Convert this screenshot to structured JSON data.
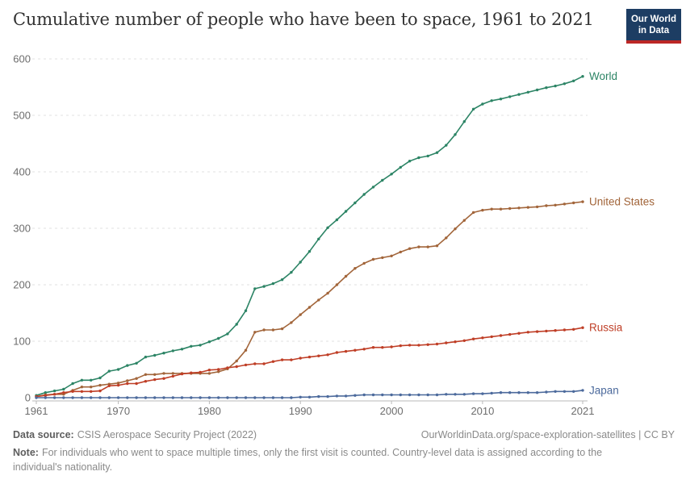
{
  "header": {
    "title": "Cumulative number of people who have been to space, 1961 to 2021",
    "logo_line1": "Our World",
    "logo_line2": "in Data"
  },
  "footer": {
    "source_label": "Data source:",
    "source_value": "CSIS Aerospace Security Project (2022)",
    "link": "OurWorldinData.org/space-exploration-satellites | CC BY",
    "note_label": "Note:",
    "note_value": "For individuals who went to space multiple times, only the first visit is counted. Country-level data is assigned according to the individual's nationality."
  },
  "colors": {
    "logo_navy": "#1d3d63",
    "logo_red": "#bc2726",
    "grid": "#e2e2e2",
    "axis_line": "#b9b9b9",
    "axis_text": "#6d6d6d"
  },
  "chart_data": {
    "type": "line",
    "title": "Cumulative number of people who have been to space, 1961 to 2021",
    "xlabel": "",
    "ylabel": "",
    "ylim": [
      0,
      600
    ],
    "yticks": [
      0,
      100,
      200,
      300,
      400,
      500,
      600
    ],
    "xticks": [
      1961,
      1970,
      1980,
      1990,
      2000,
      2010,
      2021
    ],
    "grid": "horizontal-dashed",
    "legend_position": "right-end-labels",
    "markers": true,
    "x": [
      1961,
      1962,
      1963,
      1964,
      1965,
      1966,
      1967,
      1968,
      1969,
      1970,
      1971,
      1972,
      1973,
      1974,
      1975,
      1976,
      1977,
      1978,
      1979,
      1980,
      1981,
      1982,
      1983,
      1984,
      1985,
      1986,
      1987,
      1988,
      1989,
      1990,
      1991,
      1992,
      1993,
      1994,
      1995,
      1996,
      1997,
      1998,
      1999,
      2000,
      2001,
      2002,
      2003,
      2004,
      2005,
      2006,
      2007,
      2008,
      2009,
      2010,
      2011,
      2012,
      2013,
      2014,
      2015,
      2016,
      2017,
      2018,
      2019,
      2020,
      2021
    ],
    "series": [
      {
        "name": "World",
        "color": "#2c8465",
        "values": [
          4,
          9,
          12,
          15,
          25,
          31,
          31,
          35,
          47,
          50,
          57,
          61,
          72,
          75,
          79,
          83,
          86,
          91,
          93,
          99,
          105,
          113,
          130,
          154,
          193,
          197,
          202,
          209,
          222,
          240,
          259,
          281,
          301,
          315,
          330,
          345,
          360,
          373,
          385,
          396,
          408,
          419,
          425,
          428,
          434,
          447,
          466,
          489,
          511,
          520,
          526,
          529,
          533,
          537,
          541,
          545,
          549,
          552,
          556,
          561,
          569
        ]
      },
      {
        "name": "United States",
        "color": "#a2653a",
        "values": [
          2,
          5,
          6,
          6,
          13,
          19,
          19,
          22,
          24,
          26,
          30,
          34,
          41,
          41,
          43,
          43,
          43,
          43,
          43,
          43,
          46,
          51,
          65,
          84,
          116,
          120,
          120,
          122,
          133,
          147,
          160,
          173,
          185,
          200,
          215,
          229,
          238,
          245,
          248,
          251,
          258,
          264,
          267,
          267,
          269,
          283,
          299,
          314,
          328,
          332,
          334,
          334,
          335,
          336,
          337,
          338,
          340,
          341,
          343,
          345,
          347
        ]
      },
      {
        "name": "Russia",
        "color": "#bf3e26",
        "values": [
          2,
          4,
          6,
          9,
          11,
          11,
          11,
          12,
          21,
          22,
          25,
          25,
          29,
          32,
          34,
          38,
          42,
          44,
          45,
          49,
          50,
          53,
          55,
          58,
          60,
          60,
          64,
          67,
          67,
          70,
          72,
          74,
          76,
          80,
          82,
          84,
          86,
          89,
          89,
          90,
          92,
          93,
          93,
          94,
          95,
          97,
          99,
          101,
          104,
          106,
          108,
          110,
          112,
          114,
          116,
          117,
          118,
          119,
          120,
          121,
          124
        ]
      },
      {
        "name": "Japan",
        "color": "#4c6a9c",
        "values": [
          0,
          0,
          0,
          0,
          0,
          0,
          0,
          0,
          0,
          0,
          0,
          0,
          0,
          0,
          0,
          0,
          0,
          0,
          0,
          0,
          0,
          0,
          0,
          0,
          0,
          0,
          0,
          0,
          0,
          1,
          1,
          2,
          2,
          3,
          3,
          4,
          5,
          5,
          5,
          5,
          5,
          5,
          5,
          5,
          5,
          6,
          6,
          6,
          7,
          7,
          8,
          9,
          9,
          9,
          9,
          9,
          10,
          11,
          11,
          11,
          13
        ]
      }
    ]
  }
}
